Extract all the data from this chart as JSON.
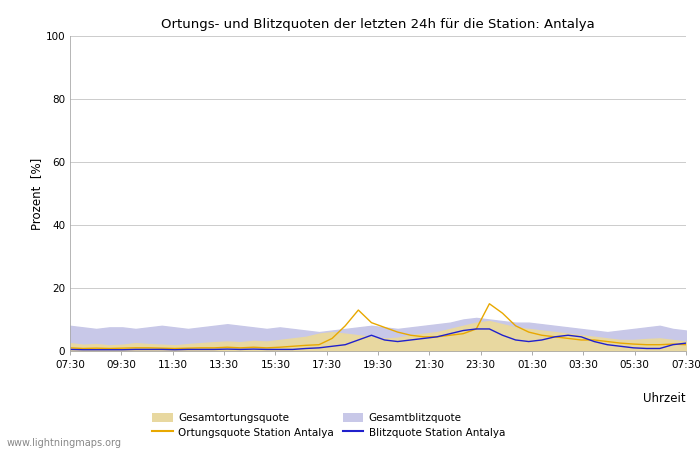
{
  "title": "Ortungs- und Blitzquoten der letzten 24h für die Station: Antalya",
  "xlabel": "Uhrzeit",
  "ylabel": "Prozent  [%]",
  "xlim": [
    0,
    48
  ],
  "ylim": [
    0,
    100
  ],
  "yticks": [
    0,
    20,
    40,
    60,
    80,
    100
  ],
  "xtick_labels": [
    "07:30",
    "09:30",
    "11:30",
    "13:30",
    "15:30",
    "17:30",
    "19:30",
    "21:30",
    "23:30",
    "01:30",
    "03:30",
    "05:30",
    "07:30"
  ],
  "watermark": "www.lightningmaps.org",
  "bg_color": "#ffffff",
  "plot_bg_color": "#ffffff",
  "grid_color": "#cccccc",
  "gesamtortung_color": "#e8d8a0",
  "gesamtblitz_color": "#c8c8e8",
  "ortung_line_color": "#e8a800",
  "blitz_line_color": "#2020cc",
  "gesamtortung": [
    2.5,
    2.0,
    2.2,
    1.8,
    2.0,
    2.5,
    2.2,
    2.0,
    1.8,
    2.2,
    2.5,
    2.8,
    3.0,
    2.8,
    3.2,
    3.0,
    3.5,
    4.0,
    4.5,
    5.5,
    6.0,
    5.5,
    5.0,
    4.5,
    4.0,
    4.2,
    5.0,
    5.5,
    6.0,
    7.0,
    8.0,
    9.0,
    9.5,
    8.5,
    7.5,
    7.0,
    6.5,
    6.0,
    5.5,
    5.0,
    4.5,
    4.0,
    3.5,
    3.5,
    3.8,
    4.0,
    3.5,
    3.0
  ],
  "gesamtblitz": [
    8.0,
    7.5,
    7.0,
    7.5,
    7.5,
    7.0,
    7.5,
    8.0,
    7.5,
    7.0,
    7.5,
    8.0,
    8.5,
    8.0,
    7.5,
    7.0,
    7.5,
    7.0,
    6.5,
    6.0,
    6.5,
    7.0,
    7.5,
    8.0,
    7.5,
    7.0,
    7.5,
    8.0,
    8.5,
    9.0,
    10.0,
    10.5,
    10.0,
    9.5,
    9.0,
    9.0,
    8.5,
    8.0,
    7.5,
    7.0,
    6.5,
    6.0,
    6.5,
    7.0,
    7.5,
    8.0,
    7.0,
    6.5
  ],
  "ortungsquote": [
    1.0,
    0.8,
    0.9,
    0.8,
    0.9,
    1.0,
    1.0,
    0.9,
    0.8,
    0.9,
    1.0,
    1.0,
    1.2,
    1.0,
    1.2,
    1.0,
    1.2,
    1.5,
    1.8,
    2.0,
    4.0,
    8.0,
    13.0,
    9.0,
    7.5,
    6.0,
    5.0,
    4.5,
    4.5,
    5.0,
    5.5,
    7.0,
    15.0,
    12.0,
    8.0,
    6.0,
    5.0,
    4.5,
    4.0,
    3.5,
    3.5,
    3.0,
    2.5,
    2.2,
    2.0,
    2.0,
    2.2,
    2.0
  ],
  "blitzquote": [
    0.5,
    0.4,
    0.4,
    0.4,
    0.4,
    0.5,
    0.5,
    0.5,
    0.4,
    0.5,
    0.5,
    0.5,
    0.6,
    0.5,
    0.6,
    0.5,
    0.5,
    0.5,
    0.8,
    1.0,
    1.5,
    2.0,
    3.5,
    5.0,
    3.5,
    3.0,
    3.5,
    4.0,
    4.5,
    5.5,
    6.5,
    7.0,
    7.0,
    5.0,
    3.5,
    3.0,
    3.5,
    4.5,
    5.0,
    4.5,
    3.0,
    2.0,
    1.5,
    1.0,
    0.8,
    0.8,
    2.0,
    2.5
  ]
}
